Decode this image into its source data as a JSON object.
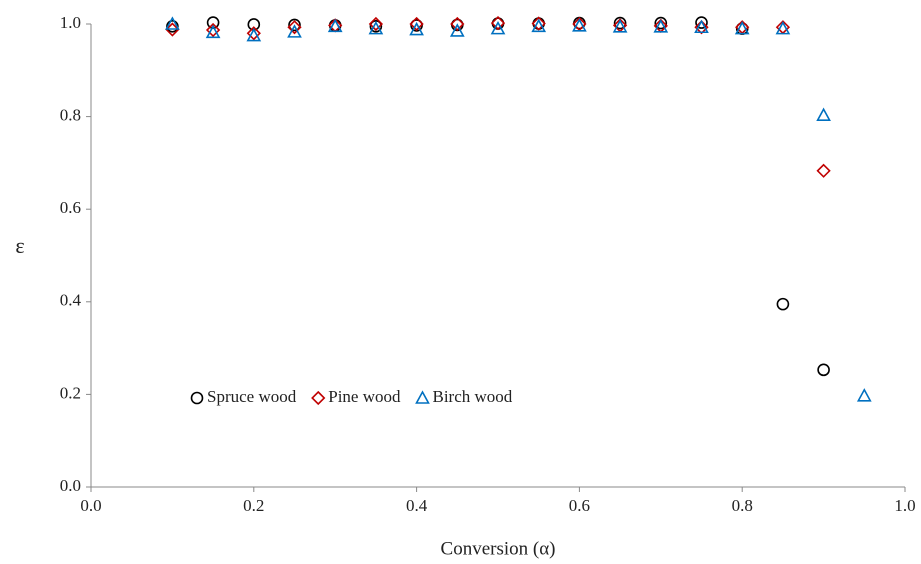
{
  "chart_data": {
    "type": "scatter",
    "x_label": "Conversion (α)",
    "y_label": "ε",
    "xlim": [
      0,
      1
    ],
    "ylim": [
      0,
      1
    ],
    "xticks": [
      {
        "value": 0,
        "label": "0.0"
      },
      {
        "value": 0.2,
        "label": "0.2"
      },
      {
        "value": 0.4,
        "label": "0.4"
      },
      {
        "value": 0.6,
        "label": "0.6"
      },
      {
        "value": 0.8,
        "label": "0.8"
      },
      {
        "value": 1,
        "label": "1.0"
      }
    ],
    "yticks": [
      {
        "value": 0,
        "label": "0.0"
      },
      {
        "value": 0.2,
        "label": "0.2"
      },
      {
        "value": 0.4,
        "label": "0.4"
      },
      {
        "value": 0.6,
        "label": "0.6"
      },
      {
        "value": 0.8,
        "label": "0.8"
      },
      {
        "value": 1,
        "label": "1.0"
      }
    ],
    "grid": false,
    "legend": "lower-left",
    "series": [
      {
        "name": "Spruce wood",
        "color": "#000000",
        "marker": "circle",
        "x": [
          0.1,
          0.15,
          0.2,
          0.25,
          0.3,
          0.35,
          0.4,
          0.45,
          0.5,
          0.55,
          0.6,
          0.65,
          0.7,
          0.75,
          0.8,
          0.85,
          0.9
        ],
        "values": [
          0.995,
          1.003,
          0.999,
          0.998,
          0.997,
          0.995,
          0.997,
          0.998,
          1.001,
          1.001,
          1.002,
          1.002,
          1.002,
          1.003,
          0.99,
          0.395,
          0.253
        ]
      },
      {
        "name": "Pine wood",
        "color": "#c00000",
        "marker": "diamond",
        "x": [
          0.1,
          0.15,
          0.2,
          0.25,
          0.3,
          0.35,
          0.4,
          0.45,
          0.5,
          0.55,
          0.6,
          0.65,
          0.7,
          0.75,
          0.8,
          0.85,
          0.9
        ],
        "values": [
          0.988,
          0.987,
          0.98,
          0.993,
          0.997,
          1.0,
          1.0,
          1.0,
          1.002,
          1.001,
          1.0,
          0.997,
          0.996,
          0.993,
          0.993,
          0.993,
          0.683
        ]
      },
      {
        "name": "Birch wood",
        "color": "#0070c0",
        "marker": "triangle",
        "x": [
          0.1,
          0.15,
          0.2,
          0.25,
          0.3,
          0.35,
          0.4,
          0.45,
          0.5,
          0.55,
          0.6,
          0.65,
          0.7,
          0.75,
          0.8,
          0.85,
          0.9,
          0.95
        ],
        "values": [
          1.0,
          0.982,
          0.975,
          0.983,
          0.995,
          0.99,
          0.988,
          0.985,
          0.99,
          0.995,
          0.996,
          0.994,
          0.994,
          0.993,
          0.99,
          0.99,
          0.803,
          0.197
        ]
      }
    ]
  }
}
